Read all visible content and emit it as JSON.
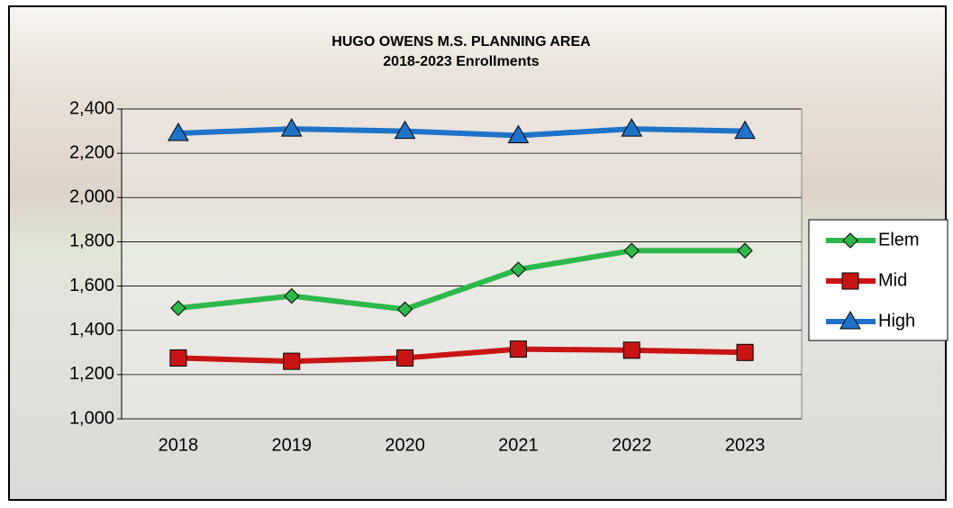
{
  "chart_data": {
    "type": "line",
    "title": "HUGO OWENS M.S. PLANNING AREA",
    "subtitle": "2018-2023 Enrollments",
    "categories": [
      "2018",
      "2019",
      "2020",
      "2021",
      "2022",
      "2023"
    ],
    "series": [
      {
        "name": "Elem",
        "color": "#2db84b",
        "marker": "diamond",
        "values": [
          1500,
          1555,
          1495,
          1675,
          1760,
          1760
        ]
      },
      {
        "name": "Mid",
        "color": "#c81414",
        "marker": "square",
        "values": [
          1275,
          1260,
          1275,
          1315,
          1310,
          1300
        ]
      },
      {
        "name": "High",
        "color": "#1e73c8",
        "marker": "triangle",
        "values": [
          2290,
          2310,
          2300,
          2280,
          2310,
          2300
        ]
      }
    ],
    "ylim": [
      1000,
      2400
    ],
    "yticks": [
      {
        "value": 1000,
        "label": "1,000"
      },
      {
        "value": 1200,
        "label": "1,200"
      },
      {
        "value": 1400,
        "label": "1,400"
      },
      {
        "value": 1600,
        "label": "1,600"
      },
      {
        "value": 1800,
        "label": "1,800"
      },
      {
        "value": 2000,
        "label": "2,000"
      },
      {
        "value": 2200,
        "label": "2,200"
      },
      {
        "value": 2400,
        "label": "2,400"
      }
    ],
    "grid": true,
    "legend": "right"
  }
}
